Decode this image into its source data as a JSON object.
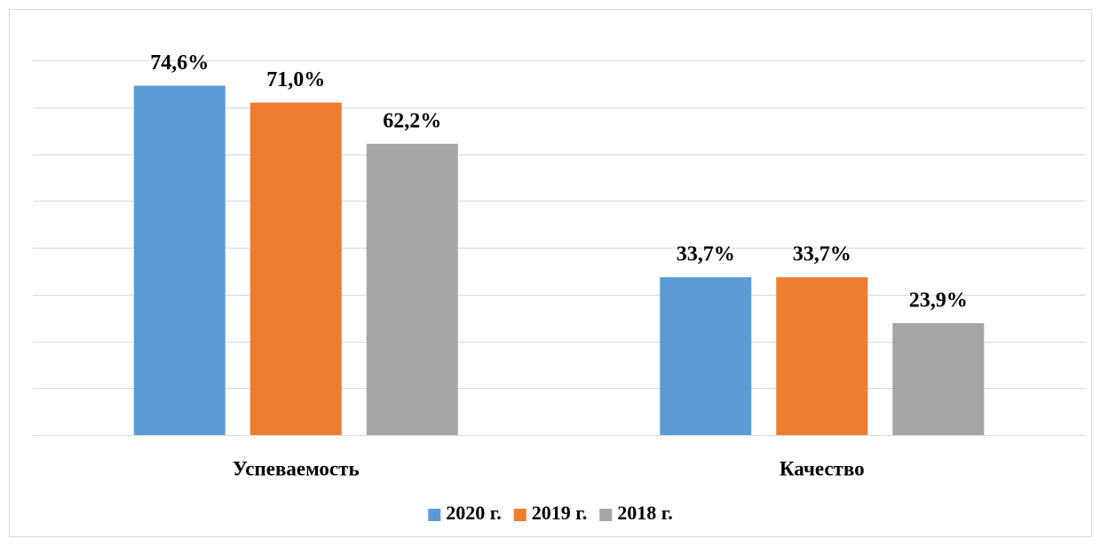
{
  "chart_data": {
    "type": "bar",
    "categories": [
      "Успеваемость",
      "Качество"
    ],
    "series": [
      {
        "name": "2020 г.",
        "color": "#5b9bd5",
        "values": [
          74.6,
          33.7
        ],
        "value_labels": [
          "74,6%",
          "33,7%"
        ]
      },
      {
        "name": "2019 г.",
        "color": "#ed7d31",
        "values": [
          71.0,
          33.7
        ],
        "value_labels": [
          "71,0%",
          "33,7%"
        ]
      },
      {
        "name": "2018 г.",
        "color": "#a5a5a5",
        "values": [
          62.2,
          23.9
        ],
        "value_labels": [
          "62,2%",
          "23,9%"
        ]
      }
    ],
    "ylim": [
      0,
      80
    ],
    "yticks": [
      0,
      10,
      20,
      30,
      40,
      50,
      60,
      70,
      80
    ],
    "grid": true
  }
}
